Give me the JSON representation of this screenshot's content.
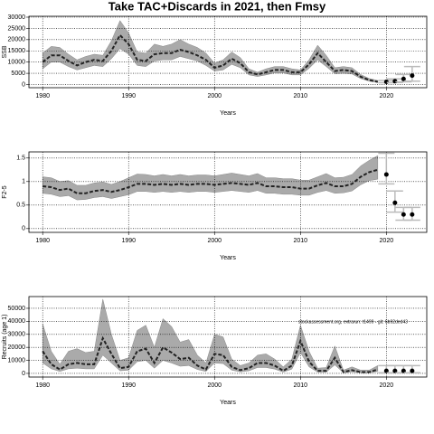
{
  "chart_data": [
    {
      "type": "line",
      "title": "Take TAC+Discards in 2021, then Fmsy",
      "xlabel": "Years",
      "ylabel": "SSB",
      "xlim": [
        1978.4,
        2024.7
      ],
      "xticks": [
        1980,
        1990,
        2000,
        2010,
        2020
      ],
      "ylim": [
        -1400,
        30400
      ],
      "yticks": [
        0,
        5000,
        10000,
        15000,
        20000,
        25000,
        30000
      ],
      "grid": true,
      "x": [
        1980,
        1981,
        1982,
        1983,
        1984,
        1985,
        1986,
        1987,
        1988,
        1989,
        1990,
        1991,
        1992,
        1993,
        1994,
        1995,
        1996,
        1997,
        1998,
        1999,
        2000,
        2001,
        2002,
        2003,
        2004,
        2005,
        2006,
        2007,
        2008,
        2009,
        2010,
        2011,
        2012,
        2013,
        2014,
        2015,
        2016,
        2017,
        2018,
        2019
      ],
      "values": [
        10000,
        13000,
        13000,
        10500,
        8500,
        10000,
        11000,
        10500,
        15000,
        22000,
        18000,
        11000,
        10500,
        13500,
        14000,
        14000,
        15500,
        14500,
        13000,
        11000,
        7500,
        8500,
        11500,
        9500,
        5500,
        4500,
        5500,
        6500,
        6500,
        5500,
        5500,
        9000,
        14000,
        10000,
        6000,
        6500,
        6000,
        3500,
        2000,
        1200
      ],
      "lower": [
        7000,
        10000,
        10000,
        8000,
        6500,
        7500,
        8500,
        8000,
        11500,
        16000,
        13500,
        8500,
        8000,
        10500,
        11000,
        11000,
        12500,
        11500,
        10500,
        8500,
        6000,
        6500,
        9000,
        7500,
        4300,
        3600,
        4300,
        5200,
        5200,
        4300,
        4300,
        7200,
        11000,
        8000,
        4800,
        5000,
        4700,
        2700,
        1500,
        900
      ],
      "upper": [
        14000,
        17000,
        16500,
        13500,
        11000,
        12500,
        13500,
        13000,
        19500,
        28500,
        23000,
        14500,
        14000,
        18000,
        17000,
        18000,
        20000,
        18000,
        16500,
        14000,
        9500,
        11000,
        14500,
        12000,
        7000,
        5500,
        7000,
        8000,
        8000,
        7000,
        6500,
        11000,
        17500,
        13000,
        7500,
        8000,
        7500,
        4500,
        2700,
        1800
      ],
      "forecast": {
        "x": [
          2020,
          2021,
          2022,
          2023
        ],
        "values": [
          1200,
          1500,
          2500,
          4000
        ],
        "lower": [
          800,
          900,
          1200,
          1500
        ],
        "upper": [
          1800,
          2500,
          4500,
          8000
        ]
      }
    },
    {
      "type": "line",
      "xlabel": "Years",
      "ylabel": "F2-5",
      "xlim": [
        1978.4,
        2024.7
      ],
      "xticks": [
        1980,
        1990,
        2000,
        2010,
        2020
      ],
      "ylim": [
        -0.08,
        1.63
      ],
      "yticks": [
        0,
        0.5,
        1,
        1.5
      ],
      "grid": true,
      "x": [
        1980,
        1981,
        1982,
        1983,
        1984,
        1985,
        1986,
        1987,
        1988,
        1989,
        1990,
        1991,
        1992,
        1993,
        1994,
        1995,
        1996,
        1997,
        1998,
        1999,
        2000,
        2001,
        2002,
        2003,
        2004,
        2005,
        2006,
        2007,
        2008,
        2009,
        2010,
        2011,
        2012,
        2013,
        2014,
        2015,
        2016,
        2017,
        2018,
        2019
      ],
      "values": [
        0.9,
        0.88,
        0.82,
        0.85,
        0.75,
        0.75,
        0.8,
        0.82,
        0.78,
        0.82,
        0.88,
        0.95,
        0.95,
        0.93,
        0.95,
        0.93,
        0.95,
        0.93,
        0.95,
        0.95,
        0.93,
        0.95,
        0.97,
        0.95,
        0.93,
        0.97,
        0.9,
        0.9,
        0.88,
        0.88,
        0.85,
        0.85,
        0.92,
        0.97,
        0.9,
        0.9,
        0.95,
        1.1,
        1.2,
        1.25
      ],
      "lower": [
        0.75,
        0.73,
        0.68,
        0.7,
        0.61,
        0.62,
        0.66,
        0.68,
        0.64,
        0.68,
        0.72,
        0.79,
        0.79,
        0.77,
        0.79,
        0.77,
        0.79,
        0.77,
        0.79,
        0.79,
        0.77,
        0.79,
        0.81,
        0.79,
        0.77,
        0.81,
        0.75,
        0.75,
        0.73,
        0.73,
        0.71,
        0.71,
        0.77,
        0.81,
        0.75,
        0.76,
        0.8,
        0.93,
        1.02,
        1.05
      ],
      "upper": [
        1.1,
        1.08,
        1.0,
        1.02,
        0.92,
        0.92,
        0.97,
        0.99,
        0.94,
        1.0,
        1.08,
        1.16,
        1.15,
        1.12,
        1.15,
        1.12,
        1.15,
        1.12,
        1.14,
        1.14,
        1.12,
        1.15,
        1.18,
        1.15,
        1.12,
        1.17,
        1.08,
        1.08,
        1.06,
        1.06,
        1.03,
        1.03,
        1.1,
        1.17,
        1.08,
        1.09,
        1.15,
        1.33,
        1.45,
        1.55
      ],
      "forecast": {
        "x": [
          2020,
          2021,
          2022,
          2023
        ],
        "values": [
          1.15,
          0.55,
          0.3,
          0.3
        ],
        "lower": [
          0.95,
          0.35,
          0.18,
          0.18
        ],
        "upper": [
          1.6,
          0.8,
          0.45,
          0.45
        ]
      }
    },
    {
      "type": "line",
      "xlabel": "Years",
      "ylabel": "Recruits (age 1)",
      "annotation": "stockassessment.org, extrarun: t1499 - git: 6b92ded43",
      "xlim": [
        1978.4,
        2024.7
      ],
      "xticks": [
        1980,
        1990,
        2000,
        2010,
        2020
      ],
      "ylim": [
        -2800,
        59000
      ],
      "yticks": [
        0,
        10000,
        20000,
        30000,
        40000,
        50000
      ],
      "grid": true,
      "x": [
        1980,
        1981,
        1982,
        1983,
        1984,
        1985,
        1986,
        1987,
        1988,
        1989,
        1990,
        1991,
        1992,
        1993,
        1994,
        1995,
        1996,
        1997,
        1998,
        1999,
        2000,
        2001,
        2002,
        2003,
        2004,
        2005,
        2006,
        2007,
        2008,
        2009,
        2010,
        2011,
        2012,
        2013,
        2014,
        2015,
        2016,
        2017,
        2018,
        2019
      ],
      "values": [
        17000,
        7000,
        3000,
        7000,
        8000,
        7000,
        7000,
        27000,
        15000,
        4000,
        5000,
        17000,
        19000,
        8000,
        20000,
        16000,
        11000,
        12000,
        6000,
        3000,
        15000,
        14000,
        5000,
        2500,
        4000,
        8000,
        8000,
        6000,
        2000,
        6000,
        25000,
        9000,
        2000,
        2000,
        12000,
        1000,
        2500,
        1000,
        1000,
        3000
      ],
      "lower": [
        8000,
        3500,
        1500,
        3500,
        4000,
        3500,
        3500,
        14000,
        8000,
        2000,
        2500,
        9000,
        10000,
        4000,
        10000,
        8000,
        5500,
        6000,
        3000,
        1500,
        8000,
        7500,
        2500,
        1200,
        2000,
        4500,
        4500,
        3300,
        1000,
        3300,
        16000,
        5000,
        1000,
        1000,
        6500,
        500,
        1200,
        500,
        500,
        1500
      ],
      "upper": [
        38000,
        17000,
        7000,
        17000,
        19000,
        16000,
        17000,
        57000,
        30000,
        10000,
        12000,
        33000,
        37000,
        20000,
        42000,
        36000,
        24000,
        26000,
        14000,
        8000,
        30000,
        28000,
        11000,
        6000,
        8000,
        14000,
        15000,
        11000,
        5000,
        11000,
        37000,
        17000,
        4000,
        4500,
        21000,
        2500,
        5000,
        2500,
        2500,
        6000
      ],
      "forecast": {
        "x": [
          2020,
          2021,
          2022,
          2023
        ],
        "values": [
          2000,
          2000,
          2000,
          2000
        ],
        "lower": [
          500,
          500,
          500,
          500
        ],
        "upper": [
          6000,
          6000,
          6000,
          6000
        ]
      }
    }
  ]
}
